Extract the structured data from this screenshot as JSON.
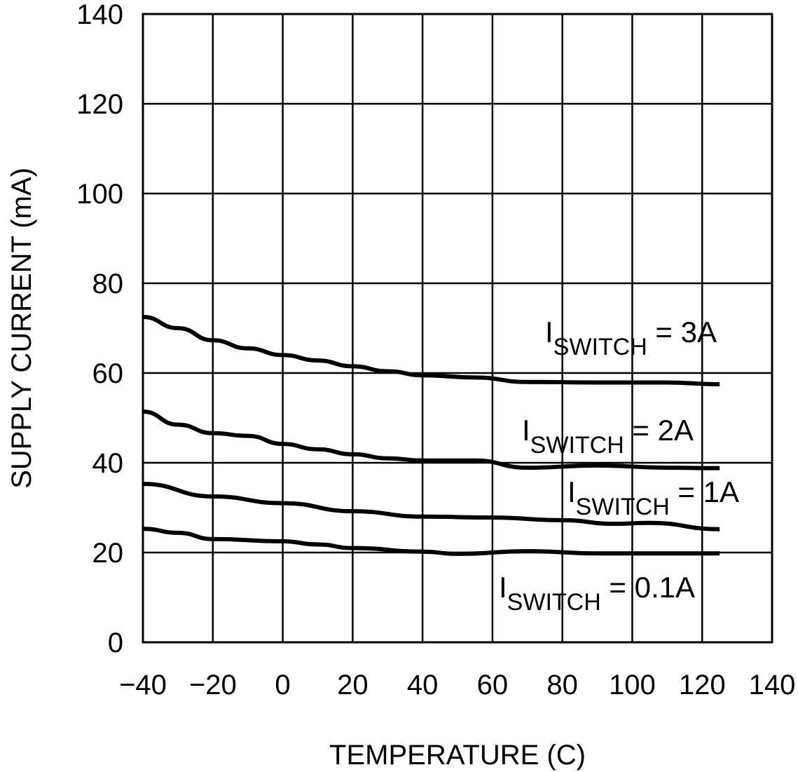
{
  "chart_data": {
    "type": "line",
    "title": "",
    "xlabel": "TEMPERATURE (C)",
    "ylabel": "SUPPLY CURRENT (mA)",
    "xlim": [
      -40,
      140
    ],
    "ylim": [
      0,
      140
    ],
    "xticks": [
      -40,
      -20,
      0,
      20,
      40,
      60,
      80,
      100,
      120,
      140
    ],
    "yticks": [
      0,
      20,
      40,
      60,
      80,
      100,
      120,
      140
    ],
    "xtick_labels": [
      "−40",
      "−20",
      "0",
      "20",
      "40",
      "60",
      "80",
      "100",
      "120",
      "140"
    ],
    "ytick_labels": [
      "0",
      "20",
      "40",
      "60",
      "80",
      "100",
      "120",
      "140"
    ],
    "grid": true,
    "legend": "inline annotations",
    "series": [
      {
        "name": "I_SWITCH = 3A",
        "label_main": "I",
        "label_sub": "SWITCH",
        "label_rest": " = 3A",
        "x": [
          -40,
          -30,
          -20,
          -10,
          0,
          10,
          20,
          30,
          40,
          55,
          70,
          90,
          110,
          125
        ],
        "y": [
          72.5,
          70,
          67.3,
          65.5,
          64,
          62.8,
          61.5,
          60.4,
          59.5,
          59,
          58,
          57.9,
          57.9,
          57.5
        ]
      },
      {
        "name": "I_SWITCH = 2A",
        "label_main": "I",
        "label_sub": "SWITCH",
        "label_rest": " = 2A",
        "x": [
          -40,
          -30,
          -20,
          -10,
          0,
          10,
          20,
          30,
          40,
          55,
          70,
          90,
          110,
          125
        ],
        "y": [
          51.4,
          48.5,
          46.6,
          46,
          44.2,
          43,
          41.9,
          41,
          40.5,
          40.5,
          38.9,
          39.4,
          38.9,
          38.8
        ]
      },
      {
        "name": "I_SWITCH = 1A",
        "label_main": "I",
        "label_sub": "SWITCH",
        "label_rest": " = 1A",
        "x": [
          -40,
          -20,
          0,
          20,
          40,
          60,
          80,
          95,
          105,
          125
        ],
        "y": [
          35.3,
          32.5,
          31,
          29.2,
          28,
          27.8,
          27.2,
          26.4,
          26.6,
          25.2
        ]
      },
      {
        "name": "I_SWITCH = 0.1A",
        "label_main": "I",
        "label_sub": "SWITCH",
        "label_rest": " = 0.1A",
        "x": [
          -40,
          -30,
          -20,
          0,
          10,
          20,
          40,
          50,
          70,
          90,
          125
        ],
        "y": [
          25.3,
          24.4,
          23,
          22.5,
          21.8,
          21,
          20.2,
          19.7,
          20.3,
          19.8,
          19.8
        ]
      }
    ]
  }
}
